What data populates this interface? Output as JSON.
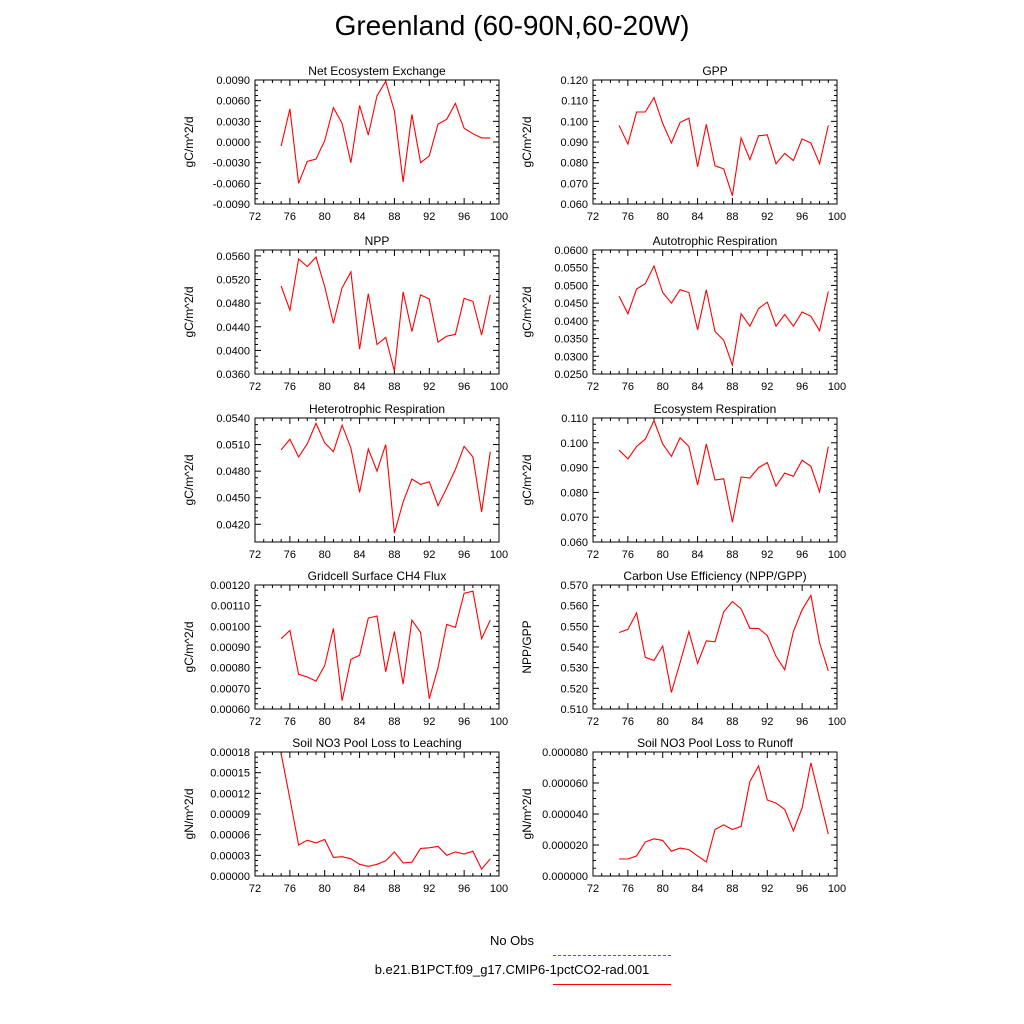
{
  "title": "Greenland (60-90N,60-20W)",
  "legend": {
    "obs_label": "No Obs",
    "obs_color": "#4a4aff",
    "model_label": "b.e21.B1PCT.f09_g17.CMIP6-1pctCO2-rad.001",
    "model_color": "#ff0000"
  },
  "chart_data": [
    {
      "type": "line",
      "title": "Net Ecosystem Exchange",
      "ylabel": "gC/m^2/d",
      "xlim": [
        72,
        100
      ],
      "xticks": [
        "72",
        "76",
        "80",
        "84",
        "88",
        "92",
        "96",
        "100"
      ],
      "ylim": [
        -0.009,
        0.009
      ],
      "yticks": [
        "-0.0090",
        "-0.0060",
        "-0.0030",
        "0.0000",
        "0.0030",
        "0.0060",
        "0.0090"
      ],
      "x": [
        75,
        76,
        77,
        78,
        79,
        80,
        81,
        82,
        83,
        84,
        85,
        86,
        87,
        88,
        89,
        90,
        91,
        92,
        93,
        94,
        95,
        96,
        97,
        98,
        99
      ],
      "series": [
        {
          "color": "#ff0000",
          "values": [
            -0.0006,
            0.0048,
            -0.006,
            -0.0028,
            -0.0025,
            0.0002,
            0.005,
            0.0027,
            -0.003,
            0.0053,
            0.001,
            0.0067,
            0.0088,
            0.0045,
            -0.0058,
            0.004,
            -0.003,
            -0.002,
            0.0026,
            0.0033,
            0.0056,
            0.002,
            0.0012,
            0.0006,
            0.0006
          ]
        }
      ]
    },
    {
      "type": "line",
      "title": "GPP",
      "ylabel": "gC/m^2/d",
      "xlim": [
        72,
        100
      ],
      "xticks": [
        "72",
        "76",
        "80",
        "84",
        "88",
        "92",
        "96",
        "100"
      ],
      "ylim": [
        0.06,
        0.12
      ],
      "yticks": [
        "0.060",
        "0.070",
        "0.080",
        "0.090",
        "0.100",
        "0.110",
        "0.120"
      ],
      "x": [
        75,
        76,
        77,
        78,
        79,
        80,
        81,
        82,
        83,
        84,
        85,
        86,
        87,
        88,
        89,
        90,
        91,
        92,
        93,
        94,
        95,
        96,
        97,
        98,
        99
      ],
      "series": [
        {
          "color": "#ff0000",
          "values": [
            0.098,
            0.089,
            0.1045,
            0.1045,
            0.1115,
            0.099,
            0.0895,
            0.0995,
            0.1015,
            0.078,
            0.0985,
            0.0785,
            0.077,
            0.064,
            0.092,
            0.0815,
            0.093,
            0.0935,
            0.0795,
            0.0845,
            0.081,
            0.0915,
            0.0895,
            0.0795,
            0.098
          ]
        }
      ]
    },
    {
      "type": "line",
      "title": "NPP",
      "ylabel": "gC/m^2/d",
      "xlim": [
        72,
        100
      ],
      "xticks": [
        "72",
        "76",
        "80",
        "84",
        "88",
        "92",
        "96",
        "100"
      ],
      "ylim": [
        0.036,
        0.057
      ],
      "yticks": [
        "0.0360",
        "0.0400",
        "0.0440",
        "0.0480",
        "0.0520",
        "0.0560"
      ],
      "x": [
        75,
        76,
        77,
        78,
        79,
        80,
        81,
        82,
        83,
        84,
        85,
        86,
        87,
        88,
        89,
        90,
        91,
        92,
        93,
        94,
        95,
        96,
        97,
        98,
        99
      ],
      "series": [
        {
          "color": "#ff0000",
          "values": [
            0.0509,
            0.0468,
            0.0555,
            0.0542,
            0.0558,
            0.0508,
            0.0446,
            0.0506,
            0.0533,
            0.0402,
            0.0496,
            0.041,
            0.0422,
            0.0365,
            0.0499,
            0.0432,
            0.0494,
            0.0487,
            0.0414,
            0.0424,
            0.0427,
            0.0488,
            0.0483,
            0.0426,
            0.0494
          ]
        }
      ]
    },
    {
      "type": "line",
      "title": "Autotrophic Respiration",
      "ylabel": "gC/m^2/d",
      "xlim": [
        72,
        100
      ],
      "xticks": [
        "72",
        "76",
        "80",
        "84",
        "88",
        "92",
        "96",
        "100"
      ],
      "ylim": [
        0.025,
        0.06
      ],
      "yticks": [
        "0.0250",
        "0.0300",
        "0.0350",
        "0.0400",
        "0.0450",
        "0.0500",
        "0.0550",
        "0.0600"
      ],
      "x": [
        75,
        76,
        77,
        78,
        79,
        80,
        81,
        82,
        83,
        84,
        85,
        86,
        87,
        88,
        89,
        90,
        91,
        92,
        93,
        94,
        95,
        96,
        97,
        98,
        99
      ],
      "series": [
        {
          "color": "#ff0000",
          "values": [
            0.047,
            0.042,
            0.049,
            0.0505,
            0.0555,
            0.048,
            0.045,
            0.0488,
            0.048,
            0.0375,
            0.0488,
            0.037,
            0.0345,
            0.0275,
            0.042,
            0.0385,
            0.0435,
            0.0453,
            0.0385,
            0.0418,
            0.0385,
            0.0425,
            0.0413,
            0.0372,
            0.0483
          ]
        }
      ]
    },
    {
      "type": "line",
      "title": "Heterotrophic Respiration",
      "ylabel": "gC/m^2/d",
      "xlim": [
        72,
        100
      ],
      "xticks": [
        "72",
        "76",
        "80",
        "84",
        "88",
        "92",
        "96",
        "100"
      ],
      "ylim": [
        0.04,
        0.054
      ],
      "yticks": [
        "0.0420",
        "0.0450",
        "0.0480",
        "0.0510",
        "0.0540"
      ],
      "x": [
        75,
        76,
        77,
        78,
        79,
        80,
        81,
        82,
        83,
        84,
        85,
        86,
        87,
        88,
        89,
        90,
        91,
        92,
        93,
        94,
        95,
        96,
        97,
        98,
        99
      ],
      "series": [
        {
          "color": "#ff0000",
          "values": [
            0.0504,
            0.0516,
            0.0496,
            0.0511,
            0.0534,
            0.0512,
            0.0502,
            0.0532,
            0.0506,
            0.0456,
            0.0505,
            0.048,
            0.051,
            0.041,
            0.0445,
            0.0471,
            0.0465,
            0.0468,
            0.0441,
            0.0461,
            0.0482,
            0.0508,
            0.0496,
            0.0434,
            0.0502
          ]
        }
      ]
    },
    {
      "type": "line",
      "title": "Ecosystem Respiration",
      "ylabel": "gC/m^2/d",
      "xlim": [
        72,
        100
      ],
      "xticks": [
        "72",
        "76",
        "80",
        "84",
        "88",
        "92",
        "96",
        "100"
      ],
      "ylim": [
        0.06,
        0.11
      ],
      "yticks": [
        "0.060",
        "0.070",
        "0.080",
        "0.090",
        "0.100",
        "0.110"
      ],
      "x": [
        75,
        76,
        77,
        78,
        79,
        80,
        81,
        82,
        83,
        84,
        85,
        86,
        87,
        88,
        89,
        90,
        91,
        92,
        93,
        94,
        95,
        96,
        97,
        98,
        99
      ],
      "series": [
        {
          "color": "#ff0000",
          "values": [
            0.097,
            0.0935,
            0.0985,
            0.1015,
            0.109,
            0.0995,
            0.0945,
            0.102,
            0.0985,
            0.083,
            0.0995,
            0.085,
            0.0855,
            0.068,
            0.0862,
            0.0858,
            0.09,
            0.092,
            0.0825,
            0.0878,
            0.0865,
            0.093,
            0.0905,
            0.0802,
            0.0985
          ]
        }
      ]
    },
    {
      "type": "line",
      "title": "Gridcell Surface CH4 Flux",
      "ylabel": "gC/m^2/d",
      "xlim": [
        72,
        100
      ],
      "xticks": [
        "72",
        "76",
        "80",
        "84",
        "88",
        "92",
        "96",
        "100"
      ],
      "ylim": [
        0.0006,
        0.0012
      ],
      "yticks": [
        "0.00060",
        "0.00070",
        "0.00080",
        "0.00090",
        "0.00100",
        "0.00110",
        "0.00120"
      ],
      "x": [
        75,
        76,
        77,
        78,
        79,
        80,
        81,
        82,
        83,
        84,
        85,
        86,
        87,
        88,
        89,
        90,
        91,
        92,
        93,
        94,
        95,
        96,
        97,
        98,
        99
      ],
      "series": [
        {
          "color": "#ff0000",
          "values": [
            0.00094,
            0.00098,
            0.000768,
            0.000755,
            0.000735,
            0.00081,
            0.00099,
            0.00064,
            0.00084,
            0.00086,
            0.00104,
            0.00105,
            0.00078,
            0.000975,
            0.00072,
            0.00103,
            0.00097,
            0.00065,
            0.0008,
            0.00101,
            0.000995,
            0.00116,
            0.00117,
            0.00094,
            0.00103
          ]
        }
      ]
    },
    {
      "type": "line",
      "title": "Carbon Use Efficiency (NPP/GPP)",
      "ylabel": "NPP/GPP",
      "xlim": [
        72,
        100
      ],
      "xticks": [
        "72",
        "76",
        "80",
        "84",
        "88",
        "92",
        "96",
        "100"
      ],
      "ylim": [
        0.51,
        0.57
      ],
      "yticks": [
        "0.510",
        "0.520",
        "0.530",
        "0.540",
        "0.550",
        "0.560",
        "0.570"
      ],
      "x": [
        75,
        76,
        77,
        78,
        79,
        80,
        81,
        82,
        83,
        84,
        85,
        86,
        87,
        88,
        89,
        90,
        91,
        92,
        93,
        94,
        95,
        96,
        97,
        98,
        99
      ],
      "series": [
        {
          "color": "#ff0000",
          "values": [
            0.547,
            0.5485,
            0.5565,
            0.535,
            0.5335,
            0.5405,
            0.518,
            0.5325,
            0.5475,
            0.532,
            0.543,
            0.5425,
            0.557,
            0.562,
            0.5585,
            0.549,
            0.549,
            0.5455,
            0.5355,
            0.529,
            0.5475,
            0.558,
            0.565,
            0.542,
            0.5285
          ]
        }
      ]
    },
    {
      "type": "line",
      "title": "Soil NO3 Pool Loss to Leaching",
      "ylabel": "gN/m^2/d",
      "xlim": [
        72,
        100
      ],
      "xticks": [
        "72",
        "76",
        "80",
        "84",
        "88",
        "92",
        "96",
        "100"
      ],
      "ylim": [
        0,
        0.00018
      ],
      "yticks": [
        "0.00000",
        "0.00003",
        "0.00006",
        "0.00009",
        "0.00012",
        "0.00015",
        "0.00018"
      ],
      "x": [
        75,
        76,
        77,
        78,
        79,
        80,
        81,
        82,
        83,
        84,
        85,
        86,
        87,
        88,
        89,
        90,
        91,
        92,
        93,
        94,
        95,
        96,
        97,
        98,
        99
      ],
      "series": [
        {
          "color": "#ff0000",
          "values": [
            0.000178,
            0.000112,
            4.5e-05,
            5.2e-05,
            4.8e-05,
            5.3e-05,
            2.7e-05,
            2.8e-05,
            2.5e-05,
            1.7e-05,
            1.4e-05,
            1.7e-05,
            2.2e-05,
            3.5e-05,
            1.9e-05,
            2e-05,
            4e-05,
            4.1e-05,
            4.3e-05,
            3e-05,
            3.5e-05,
            3.2e-05,
            3.6e-05,
            1e-05,
            2.5e-05
          ]
        }
      ]
    },
    {
      "type": "line",
      "title": "Soil NO3 Pool Loss to Runoff",
      "ylabel": "gN/m^2/d",
      "xlim": [
        72,
        100
      ],
      "xticks": [
        "72",
        "76",
        "80",
        "84",
        "88",
        "92",
        "96",
        "100"
      ],
      "ylim": [
        0,
        8e-05
      ],
      "yticks": [
        "0.000000",
        "0.000020",
        "0.000040",
        "0.000060",
        "0.000080"
      ],
      "x": [
        75,
        76,
        77,
        78,
        79,
        80,
        81,
        82,
        83,
        84,
        85,
        86,
        87,
        88,
        89,
        90,
        91,
        92,
        93,
        94,
        95,
        96,
        97,
        98,
        99
      ],
      "series": [
        {
          "color": "#ff0000",
          "values": [
            1.1e-05,
            1.1e-05,
            1.3e-05,
            2.2e-05,
            2.4e-05,
            2.3e-05,
            1.6e-05,
            1.8e-05,
            1.7e-05,
            1.3e-05,
            9e-06,
            3e-05,
            3.3e-05,
            3e-05,
            3.2e-05,
            6.1e-05,
            7.1e-05,
            4.9e-05,
            4.7e-05,
            4.3e-05,
            2.9e-05,
            4.4e-05,
            7.3e-05,
            5e-05,
            2.7e-05
          ]
        }
      ]
    }
  ]
}
